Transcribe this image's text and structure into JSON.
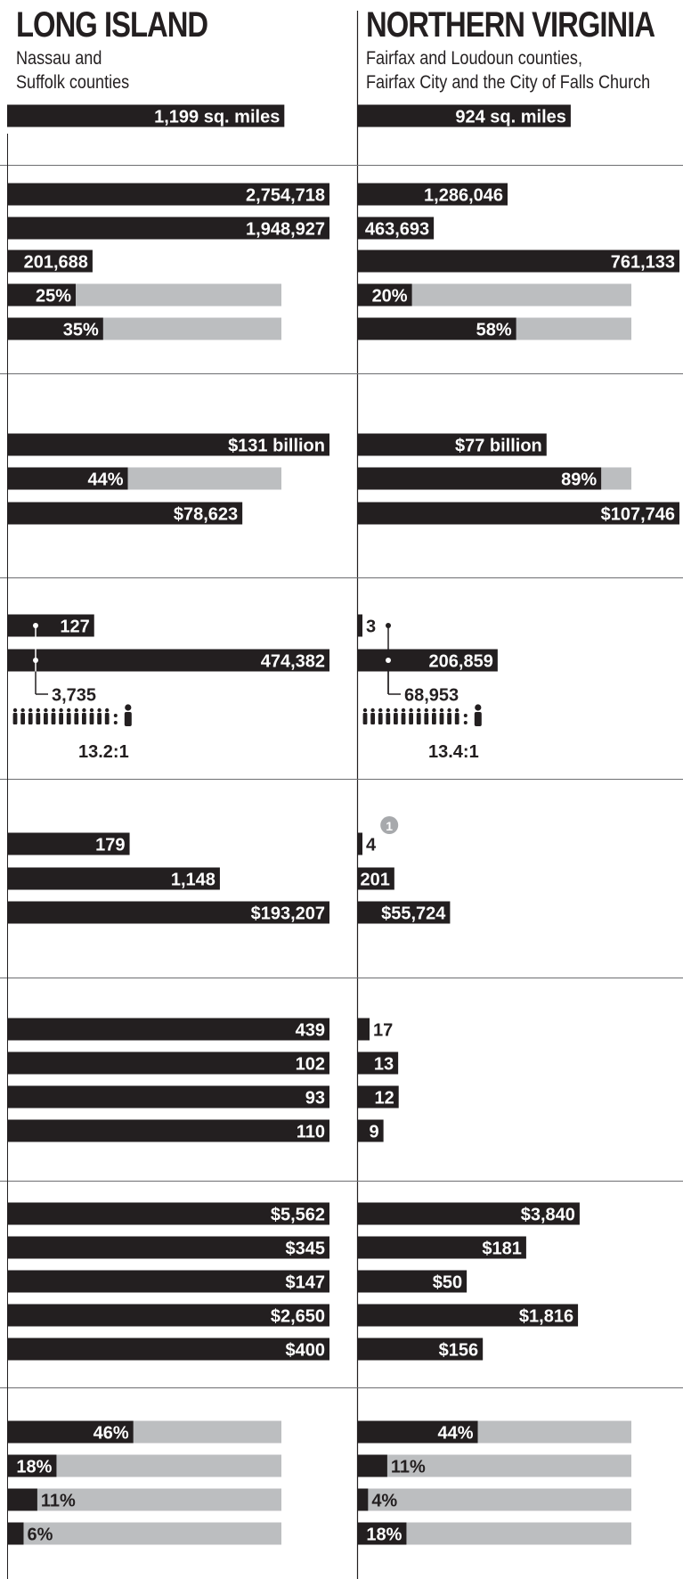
{
  "chart_data": {
    "type": "bar",
    "regions": [
      {
        "key": "long_island",
        "title": "LONG ISLAND",
        "subtitle": [
          "Nassau and",
          "Suffolk counties"
        ],
        "ratio": "13.2:1",
        "sections": [
          [
            {
              "value": 1199,
              "label": "1,199 sq. miles",
              "kind": "value"
            }
          ],
          [
            {
              "value": 2754718,
              "label": "2,754,718",
              "kind": "value"
            },
            {
              "value": 1948927,
              "label": "1,948,927",
              "kind": "value"
            },
            {
              "value": 201688,
              "label": "201,688",
              "kind": "value"
            },
            {
              "value": 25,
              "label": "25%",
              "kind": "percent"
            },
            {
              "value": 35,
              "label": "35%",
              "kind": "percent"
            }
          ],
          [
            {
              "value": 131,
              "label": "$131 billion",
              "kind": "value"
            },
            {
              "value": 44,
              "label": "44%",
              "kind": "percent"
            },
            {
              "value": 78623,
              "label": "$78,623",
              "kind": "value"
            }
          ],
          [
            {
              "value": 127,
              "label": "127",
              "kind": "value"
            },
            {
              "value": 474382,
              "label": "474,382",
              "kind": "value"
            },
            {
              "value": 3735,
              "label": "3,735",
              "kind": "callout"
            }
          ],
          [
            {
              "value": 179,
              "label": "179",
              "kind": "value"
            },
            {
              "value": 1148,
              "label": "1,148",
              "kind": "value"
            },
            {
              "value": 193207,
              "label": "$193,207",
              "kind": "value"
            }
          ],
          [
            {
              "value": 439,
              "label": "439",
              "kind": "value"
            },
            {
              "value": 102,
              "label": "102",
              "kind": "value"
            },
            {
              "value": 93,
              "label": "93",
              "kind": "value"
            },
            {
              "value": 110,
              "label": "110",
              "kind": "value"
            }
          ],
          [
            {
              "value": 5562,
              "label": "$5,562",
              "kind": "value"
            },
            {
              "value": 345,
              "label": "$345",
              "kind": "value"
            },
            {
              "value": 147,
              "label": "$147",
              "kind": "value"
            },
            {
              "value": 2650,
              "label": "$2,650",
              "kind": "value"
            },
            {
              "value": 400,
              "label": "$400",
              "kind": "value"
            }
          ],
          [
            {
              "value": 46,
              "label": "46%",
              "kind": "percent"
            },
            {
              "value": 18,
              "label": "18%",
              "kind": "percent"
            },
            {
              "value": 11,
              "label": "11%",
              "kind": "percent"
            },
            {
              "value": 6,
              "label": "6%",
              "kind": "percent"
            }
          ]
        ]
      },
      {
        "key": "northern_virginia",
        "title": "NORTHERN VIRGINIA",
        "subtitle": [
          "Fairfax and Loudoun counties,",
          "Fairfax City and the City of Falls Church"
        ],
        "ratio": "13.4:1",
        "sections": [
          [
            {
              "value": 924,
              "label": "924 sq. miles",
              "kind": "value"
            }
          ],
          [
            {
              "value": 1286046,
              "label": "1,286,046",
              "kind": "value"
            },
            {
              "value": 463693,
              "label": "463,693",
              "kind": "value"
            },
            {
              "value": 761133,
              "label": "761,133",
              "kind": "value"
            },
            {
              "value": 20,
              "label": "20%",
              "kind": "percent"
            },
            {
              "value": 58,
              "label": "58%",
              "kind": "percent"
            }
          ],
          [
            {
              "value": 77,
              "label": "$77 billion",
              "kind": "value"
            },
            {
              "value": 89,
              "label": "89%",
              "kind": "percent"
            },
            {
              "value": 107746,
              "label": "$107,746",
              "kind": "value"
            }
          ],
          [
            {
              "value": 3,
              "label": "3",
              "kind": "value"
            },
            {
              "value": 206859,
              "label": "206,859",
              "kind": "value"
            },
            {
              "value": 68953,
              "label": "68,953",
              "kind": "callout"
            }
          ],
          [
            {
              "value": 4,
              "label": "4",
              "kind": "value",
              "note": "1"
            },
            {
              "value": 201,
              "label": "201",
              "kind": "value"
            },
            {
              "value": 55724,
              "label": "$55,724",
              "kind": "value"
            }
          ],
          [
            {
              "value": 17,
              "label": "17",
              "kind": "value"
            },
            {
              "value": 13,
              "label": "13",
              "kind": "value"
            },
            {
              "value": 12,
              "label": "12",
              "kind": "value"
            },
            {
              "value": 9,
              "label": "9",
              "kind": "value"
            }
          ],
          [
            {
              "value": 3840,
              "label": "$3,840",
              "kind": "value"
            },
            {
              "value": 181,
              "label": "$181",
              "kind": "value"
            },
            {
              "value": 50,
              "label": "$50",
              "kind": "value"
            },
            {
              "value": 1816,
              "label": "$1,816",
              "kind": "value"
            },
            {
              "value": 156,
              "label": "$156",
              "kind": "value"
            }
          ],
          [
            {
              "value": 44,
              "label": "44%",
              "kind": "percent"
            },
            {
              "value": 11,
              "label": "11%",
              "kind": "percent"
            },
            {
              "value": 4,
              "label": "4%",
              "kind": "percent"
            },
            {
              "value": 18,
              "label": "18%",
              "kind": "percent"
            }
          ]
        ]
      }
    ],
    "colors": {
      "bar": "#231f20",
      "track": "#bcbec0",
      "rule": "#6d6e71",
      "note": "#a7a9ac",
      "text": "#231f20",
      "label_on_bar": "#ffffff"
    }
  }
}
